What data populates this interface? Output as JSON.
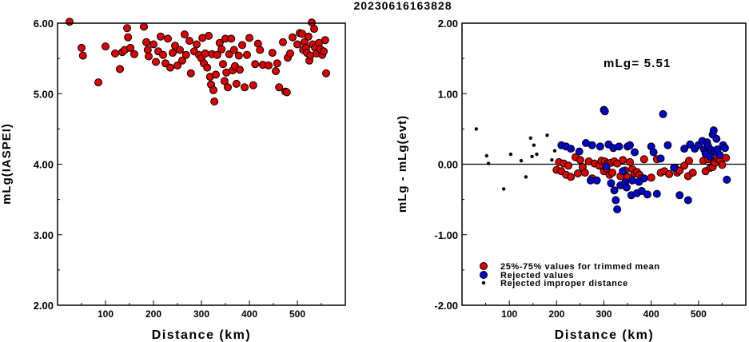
{
  "title": "20230616163828",
  "colors": {
    "trimmed": "#dd0000",
    "rejected": "#0000cc",
    "improper": "#000000"
  },
  "chart_data": [
    {
      "type": "scatter",
      "title": "",
      "xlabel": "Distance (km)",
      "ylabel": "mLg(IASPEI)",
      "xlim": [
        0,
        600
      ],
      "ylim": [
        2,
        6
      ],
      "x_ticks": [
        "100",
        "200",
        "300",
        "400",
        "500"
      ],
      "y_ticks": [
        "2.00",
        "3.00",
        "4.00",
        "5.00",
        "6.00"
      ],
      "series": [
        {
          "color": "trimmed",
          "points": [
            [
              25,
              6.02
            ],
            [
              50,
              5.65
            ],
            [
              53,
              5.54
            ],
            [
              85,
              5.16
            ],
            [
              100,
              5.67
            ],
            [
              120,
              5.57
            ],
            [
              130,
              5.35
            ],
            [
              135,
              5.59
            ],
            [
              140,
              5.62
            ],
            [
              145,
              5.93
            ],
            [
              147,
              5.8
            ],
            [
              152,
              5.65
            ],
            [
              160,
              5.56
            ],
            [
              180,
              5.95
            ],
            [
              185,
              5.73
            ],
            [
              188,
              5.62
            ],
            [
              190,
              5.53
            ],
            [
              200,
              5.7
            ],
            [
              205,
              5.45
            ],
            [
              210,
              5.6
            ],
            [
              215,
              5.81
            ],
            [
              220,
              5.55
            ],
            [
              225,
              5.43
            ],
            [
              230,
              5.78
            ],
            [
              235,
              5.37
            ],
            [
              240,
              5.58
            ],
            [
              245,
              5.68
            ],
            [
              250,
              5.4
            ],
            [
              255,
              5.62
            ],
            [
              260,
              5.47
            ],
            [
              265,
              5.84
            ],
            [
              268,
              5.55
            ],
            [
              275,
              5.75
            ],
            [
              278,
              5.29
            ],
            [
              285,
              5.6
            ],
            [
              290,
              5.7
            ],
            [
              295,
              5.55
            ],
            [
              300,
              5.5
            ],
            [
              302,
              5.79
            ],
            [
              305,
              5.43
            ],
            [
              308,
              5.57
            ],
            [
              312,
              5.37
            ],
            [
              315,
              5.82
            ],
            [
              318,
              5.24
            ],
            [
              320,
              5.13
            ],
            [
              322,
              5.56
            ],
            [
              325,
              5.05
            ],
            [
              327,
              4.89
            ],
            [
              330,
              5.27
            ],
            [
              333,
              5.55
            ],
            [
              338,
              5.72
            ],
            [
              342,
              5.63
            ],
            [
              345,
              5.42
            ],
            [
              348,
              5.18
            ],
            [
              350,
              5.78
            ],
            [
              352,
              5.3
            ],
            [
              355,
              5.09
            ],
            [
              358,
              5.56
            ],
            [
              362,
              5.78
            ],
            [
              365,
              5.33
            ],
            [
              368,
              5.62
            ],
            [
              370,
              5.39
            ],
            [
              373,
              5.14
            ],
            [
              378,
              5.54
            ],
            [
              380,
              5.34
            ],
            [
              385,
              5.69
            ],
            [
              390,
              5.09
            ],
            [
              395,
              5.55
            ],
            [
              400,
              5.79
            ],
            [
              408,
              5.12
            ],
            [
              412,
              5.42
            ],
            [
              418,
              5.71
            ],
            [
              422,
              5.62
            ],
            [
              428,
              5.41
            ],
            [
              440,
              5.4
            ],
            [
              448,
              5.58
            ],
            [
              455,
              5.32
            ],
            [
              458,
              5.43
            ],
            [
              462,
              5.09
            ],
            [
              470,
              5.73
            ],
            [
              475,
              5.03
            ],
            [
              478,
              5.02
            ],
            [
              480,
              5.51
            ],
            [
              485,
              5.57
            ],
            [
              490,
              5.8
            ],
            [
              500,
              5.7
            ],
            [
              505,
              5.86
            ],
            [
              510,
              5.85
            ],
            [
              512,
              5.62
            ],
            [
              515,
              5.73
            ],
            [
              518,
              5.65
            ],
            [
              520,
              5.58
            ],
            [
              523,
              5.81
            ],
            [
              525,
              5.47
            ],
            [
              527,
              5.54
            ],
            [
              530,
              6.01
            ],
            [
              532,
              5.7
            ],
            [
              535,
              5.92
            ],
            [
              537,
              5.65
            ],
            [
              540,
              5.57
            ],
            [
              545,
              5.72
            ],
            [
              548,
              5.63
            ],
            [
              552,
              5.55
            ],
            [
              555,
              5.6
            ],
            [
              558,
              5.76
            ],
            [
              560,
              5.29
            ]
          ]
        }
      ]
    },
    {
      "type": "scatter",
      "title": "",
      "xlabel": "Distance (km)",
      "ylabel": "mLg - mLg(evt)",
      "xlim": [
        0,
        600
      ],
      "ylim": [
        -2,
        2
      ],
      "x_ticks": [
        "100",
        "200",
        "300",
        "400",
        "500"
      ],
      "y_ticks": [
        "-2.00",
        "-1.00",
        "0.00",
        "1.00",
        "2.00"
      ],
      "annotation": "mLg= 5.51",
      "reference_line": 0,
      "legend": {
        "placement": "bottom-left",
        "entries": [
          {
            "label": "25%-75% values for trimmed mean",
            "color": "trimmed"
          },
          {
            "label": "Rejected values",
            "color": "rejected"
          },
          {
            "label": "Rejected improper distance",
            "color": "improper"
          }
        ]
      },
      "series": [
        {
          "color": "trimmed",
          "points": [
            [
              200,
              -0.08
            ],
            [
              205,
              0.03
            ],
            [
              210,
              -0.1
            ],
            [
              215,
              0.01
            ],
            [
              220,
              -0.15
            ],
            [
              225,
              -0.02
            ],
            [
              230,
              -0.18
            ],
            [
              240,
              0.1
            ],
            [
              245,
              -0.13
            ],
            [
              250,
              0.06
            ],
            [
              255,
              -0.04
            ],
            [
              260,
              -0.12
            ],
            [
              268,
              0.04
            ],
            [
              275,
              -0.2
            ],
            [
              280,
              0.01
            ],
            [
              290,
              -0.02
            ],
            [
              295,
              0.05
            ],
            [
              300,
              -0.1
            ],
            [
              302,
              0.04
            ],
            [
              305,
              -0.06
            ],
            [
              308,
              0.01
            ],
            [
              312,
              -0.15
            ],
            [
              315,
              0.02
            ],
            [
              318,
              -0.12
            ],
            [
              322,
              0.04
            ],
            [
              328,
              0.01
            ],
            [
              335,
              -0.17
            ],
            [
              340,
              0.06
            ],
            [
              345,
              -0.09
            ],
            [
              350,
              -0.18
            ],
            [
              355,
              0.03
            ],
            [
              360,
              -0.07
            ],
            [
              365,
              -0.13
            ],
            [
              370,
              -0.11
            ],
            [
              375,
              -0.15
            ],
            [
              380,
              -0.2
            ],
            [
              385,
              0.07
            ],
            [
              400,
              -0.19
            ],
            [
              412,
              0.07
            ],
            [
              420,
              -0.12
            ],
            [
              428,
              -0.1
            ],
            [
              438,
              -0.14
            ],
            [
              450,
              -0.05
            ],
            [
              455,
              -0.12
            ],
            [
              460,
              -0.09
            ],
            [
              470,
              -0.02
            ],
            [
              478,
              -0.17
            ],
            [
              480,
              0.05
            ],
            [
              488,
              -0.12
            ],
            [
              510,
              0.05
            ],
            [
              515,
              -0.1
            ],
            [
              520,
              0.07
            ],
            [
              525,
              -0.05
            ],
            [
              530,
              -0.04
            ],
            [
              532,
              0.03
            ],
            [
              535,
              0.02
            ],
            [
              540,
              0.08
            ],
            [
              545,
              0.06
            ],
            [
              550,
              -0.01
            ],
            [
              558,
              0.09
            ]
          ]
        },
        {
          "color": "rejected",
          "points": [
            [
              210,
              0.27
            ],
            [
              220,
              0.25
            ],
            [
              230,
              0.22
            ],
            [
              248,
              0.18
            ],
            [
              262,
              0.3
            ],
            [
              272,
              -0.23
            ],
            [
              275,
              0.27
            ],
            [
              285,
              -0.23
            ],
            [
              292,
              0.25
            ],
            [
              300,
              0.77
            ],
            [
              302,
              0.75
            ],
            [
              305,
              -0.03
            ],
            [
              310,
              0.28
            ],
            [
              315,
              -0.27
            ],
            [
              320,
              0.23
            ],
            [
              322,
              -0.37
            ],
            [
              325,
              -0.51
            ],
            [
              328,
              -0.64
            ],
            [
              332,
              0.25
            ],
            [
              335,
              -0.3
            ],
            [
              340,
              -0.1
            ],
            [
              345,
              -0.26
            ],
            [
              348,
              -0.33
            ],
            [
              350,
              0.25
            ],
            [
              355,
              0.27
            ],
            [
              358,
              -0.44
            ],
            [
              360,
              -0.23
            ],
            [
              365,
              0.17
            ],
            [
              370,
              -0.41
            ],
            [
              374,
              -0.25
            ],
            [
              380,
              -0.38
            ],
            [
              385,
              -0.2
            ],
            [
              392,
              -0.43
            ],
            [
              400,
              0.25
            ],
            [
              405,
              0.17
            ],
            [
              412,
              -0.42
            ],
            [
              420,
              0.08
            ],
            [
              425,
              0.71
            ],
            [
              435,
              0.27
            ],
            [
              448,
              -0.05
            ],
            [
              460,
              -0.44
            ],
            [
              470,
              0.22
            ],
            [
              478,
              -0.51
            ],
            [
              482,
              0.28
            ],
            [
              492,
              0.22
            ],
            [
              500,
              0.27
            ],
            [
              508,
              0.33
            ],
            [
              512,
              0.21
            ],
            [
              515,
              0.15
            ],
            [
              518,
              0.31
            ],
            [
              520,
              0.26
            ],
            [
              524,
              0.11
            ],
            [
              527,
              0.2
            ],
            [
              530,
              0.42
            ],
            [
              532,
              0.48
            ],
            [
              534,
              0.18
            ],
            [
              538,
              0.36
            ],
            [
              540,
              0.21
            ],
            [
              545,
              0.13
            ],
            [
              552,
              0.27
            ],
            [
              556,
              0.23
            ],
            [
              560,
              -0.22
            ]
          ]
        },
        {
          "color": "improper",
          "points": [
            [
              30,
              0.5
            ],
            [
              52,
              0.12
            ],
            [
              56,
              0.01
            ],
            [
              88,
              -0.35
            ],
            [
              103,
              0.14
            ],
            [
              125,
              0.05
            ],
            [
              135,
              -0.18
            ],
            [
              145,
              0.37
            ],
            [
              148,
              0.11
            ],
            [
              152,
              0.27
            ],
            [
              158,
              0.14
            ],
            [
              180,
              0.41
            ],
            [
              190,
              0.06
            ],
            [
              196,
              0.19
            ]
          ]
        }
      ]
    }
  ]
}
